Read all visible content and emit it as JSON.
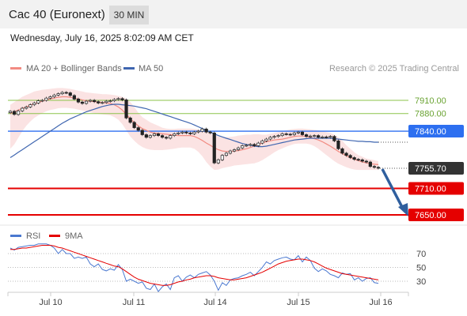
{
  "header": {
    "instrument": "Cac 40 (Euronext)",
    "timeframe": "30 MIN"
  },
  "timestamp": "Wednesday, July 16, 2025 8:02:09 AM CET",
  "legend": {
    "bb": "MA 20 + Bollinger Bands",
    "ma50": "MA 50",
    "rsi": "RSI",
    "rsi_ma": "9MA"
  },
  "credit": "Research © 2025 Trading Central",
  "colors": {
    "bb": "#f28b82",
    "ma50": "#3f66b0",
    "resistance": "#8bc34a",
    "pivot": "#2d6ff0",
    "support": "#e50000",
    "last": "#333333",
    "arrow": "#2f5f9e"
  },
  "chart_data": [
    {
      "type": "line",
      "title": "",
      "x_ticks": [
        "Jul 10",
        "Jul 11",
        "Jul 14",
        "Jul 15",
        "Jul 16"
      ],
      "levels": [
        {
          "name": "resistance",
          "value": 7910.0,
          "label": "7910.00"
        },
        {
          "name": "resistance",
          "value": 7880.0,
          "label": "7880.00"
        },
        {
          "name": "pivot",
          "value": 7840.0,
          "label": "7840.00"
        },
        {
          "name": "last",
          "value": 7755.7,
          "label": "7755.70"
        },
        {
          "name": "support",
          "value": 7710.0,
          "label": "7710.00"
        },
        {
          "name": "support",
          "value": 7650.0,
          "label": "7650.00"
        }
      ],
      "close": [
        7885,
        7878,
        7886,
        7892,
        7895,
        7900,
        7904,
        7909,
        7910,
        7915,
        7918,
        7922,
        7925,
        7928,
        7927,
        7921,
        7913,
        7906,
        7903,
        7908,
        7910,
        7907,
        7904,
        7905,
        7908,
        7909,
        7912,
        7914,
        7911,
        7870,
        7860,
        7848,
        7842,
        7832,
        7826,
        7830,
        7834,
        7830,
        7826,
        7824,
        7830,
        7834,
        7836,
        7838,
        7836,
        7834,
        7838,
        7840,
        7845,
        7838,
        7836,
        7768,
        7775,
        7785,
        7790,
        7795,
        7798,
        7802,
        7807,
        7808,
        7810,
        7807,
        7813,
        7818,
        7822,
        7826,
        7828,
        7830,
        7834,
        7833,
        7832,
        7836,
        7838,
        7832,
        7828,
        7829,
        7830,
        7826,
        7827,
        7826,
        7828,
        7818,
        7800,
        7790,
        7785,
        7780,
        7776,
        7775,
        7772,
        7770,
        7760,
        7758,
        7756
      ],
      "ma20": [
        7880,
        7884,
        7888,
        7892,
        7895,
        7899,
        7902,
        7905,
        7908,
        7911,
        7913,
        7915,
        7917,
        7918,
        7918,
        7917,
        7915,
        7913,
        7911,
        7909,
        7908,
        7907,
        7906,
        7905,
        7904,
        7903,
        7900,
        7895,
        7888,
        7878,
        7868,
        7860,
        7852,
        7846,
        7842,
        7838,
        7836,
        7835,
        7834,
        7833,
        7832,
        7831,
        7830,
        7830,
        7830,
        7830,
        7828,
        7824,
        7819,
        7813,
        7808,
        7802,
        7798,
        7795,
        7794,
        7794,
        7795,
        7796,
        7798,
        7800,
        7803,
        7806,
        7810,
        7813,
        7816,
        7818,
        7820,
        7821,
        7822,
        7824,
        7826,
        7828,
        7829,
        7829,
        7828,
        7826,
        7823,
        7820,
        7816,
        7811,
        7806,
        7800,
        7794,
        7789,
        7784,
        7780,
        7776,
        7773,
        7770,
        7768,
        7766,
        7765,
        7764
      ],
      "bb_upper": [
        7900,
        7906,
        7912,
        7918,
        7922,
        7926,
        7930,
        7932,
        7934,
        7935,
        7936,
        7937,
        7938,
        7938,
        7937,
        7936,
        7934,
        7932,
        7930,
        7928,
        7927,
        7926,
        7925,
        7924,
        7924,
        7923,
        7922,
        7920,
        7918,
        7914,
        7906,
        7895,
        7882,
        7872,
        7866,
        7860,
        7856,
        7852,
        7848,
        7846,
        7845,
        7845,
        7846,
        7846,
        7846,
        7846,
        7845,
        7844,
        7842,
        7838,
        7835,
        7832,
        7828,
        7826,
        7826,
        7827,
        7828,
        7830,
        7831,
        7832,
        7832,
        7833,
        7833,
        7832,
        7832,
        7834,
        7836,
        7838,
        7840,
        7842,
        7844,
        7845,
        7846,
        7846,
        7845,
        7844,
        7843,
        7842,
        7840,
        7838,
        7836,
        7832,
        7826,
        7818,
        7808,
        7800,
        7792,
        7786,
        7782,
        7778,
        7776,
        7774,
        7772
      ],
      "bb_lower": [
        7800,
        7810,
        7825,
        7840,
        7852,
        7862,
        7870,
        7876,
        7881,
        7885,
        7888,
        7890,
        7892,
        7893,
        7893,
        7892,
        7891,
        7889,
        7887,
        7885,
        7883,
        7881,
        7879,
        7878,
        7877,
        7876,
        7872,
        7866,
        7856,
        7842,
        7828,
        7818,
        7810,
        7804,
        7800,
        7798,
        7797,
        7797,
        7797,
        7798,
        7799,
        7800,
        7802,
        7803,
        7803,
        7803,
        7800,
        7793,
        7783,
        7770,
        7760,
        7752,
        7753,
        7756,
        7758,
        7760,
        7762,
        7763,
        7764,
        7765,
        7766,
        7767,
        7770,
        7774,
        7780,
        7786,
        7792,
        7797,
        7801,
        7805,
        7808,
        7811,
        7812,
        7812,
        7812,
        7810,
        7806,
        7800,
        7793,
        7786,
        7779,
        7772,
        7766,
        7762,
        7758,
        7755,
        7753,
        7752,
        7752,
        7752,
        7752,
        7752,
        7752
      ],
      "ma50": [
        7780,
        7786,
        7792,
        7798,
        7804,
        7810,
        7816,
        7822,
        7828,
        7834,
        7840,
        7846,
        7852,
        7858,
        7863,
        7868,
        7872,
        7876,
        7880,
        7884,
        7887,
        7890,
        7893,
        7896,
        7898,
        7900,
        7901,
        7901,
        7900,
        7899,
        7898,
        7897,
        7895,
        7893,
        7891,
        7888,
        7885,
        7882,
        7879,
        7876,
        7873,
        7870,
        7867,
        7864,
        7861,
        7858,
        7854,
        7850,
        7846,
        7842,
        7838,
        7834,
        7830,
        7827,
        7824,
        7821,
        7818,
        7815,
        7812,
        7810,
        7808,
        7806,
        7805,
        7805,
        7806,
        7808,
        7810,
        7812,
        7814,
        7816,
        7818,
        7820,
        7821,
        7822,
        7823,
        7824,
        7824,
        7824,
        7824,
        7824,
        7824,
        7823,
        7822,
        7821,
        7820,
        7819,
        7818,
        7817,
        7817,
        7816,
        7816,
        7815,
        7815
      ]
    },
    {
      "type": "line",
      "title": "",
      "ylim": [
        0,
        100
      ],
      "y_ticks": [
        70,
        50,
        30
      ],
      "series": [
        {
          "name": "RSI",
          "values": [
            78,
            75,
            79,
            80,
            81,
            82,
            82,
            84,
            84,
            84,
            82,
            78,
            70,
            76,
            70,
            70,
            63,
            65,
            63,
            65,
            55,
            51,
            55,
            47,
            45,
            48,
            46,
            54,
            47,
            30,
            33,
            30,
            27,
            29,
            20,
            18,
            26,
            15,
            22,
            26,
            18,
            35,
            38,
            30,
            36,
            39,
            35,
            40,
            42,
            44,
            39,
            30,
            17,
            28,
            24,
            32,
            34,
            35,
            38,
            40,
            43,
            38,
            44,
            50,
            58,
            55,
            60,
            62,
            64,
            65,
            62,
            61,
            67,
            58,
            65,
            60,
            49,
            44,
            48,
            45,
            40,
            38,
            35,
            42,
            40,
            41,
            32,
            35,
            30,
            34,
            35,
            28,
            27
          ]
        },
        {
          "name": "9MA",
          "values": [
            76,
            76,
            77,
            78,
            78,
            79,
            80,
            81,
            82,
            82,
            82,
            81,
            79,
            78,
            76,
            74,
            72,
            70,
            68,
            66,
            64,
            62,
            60,
            58,
            56,
            54,
            52,
            51,
            48,
            44,
            40,
            36,
            33,
            31,
            29,
            27,
            26,
            25,
            24,
            24,
            25,
            27,
            29,
            30,
            32,
            33,
            35,
            36,
            37,
            38,
            38,
            37,
            35,
            34,
            33,
            32,
            32,
            33,
            34,
            35,
            37,
            39,
            41,
            43,
            46,
            49,
            52,
            55,
            57,
            59,
            60,
            61,
            62,
            62,
            61,
            60,
            58,
            55,
            52,
            49,
            47,
            45,
            43,
            41,
            40,
            39,
            38,
            37,
            36,
            35,
            34,
            33,
            32
          ]
        }
      ]
    }
  ]
}
